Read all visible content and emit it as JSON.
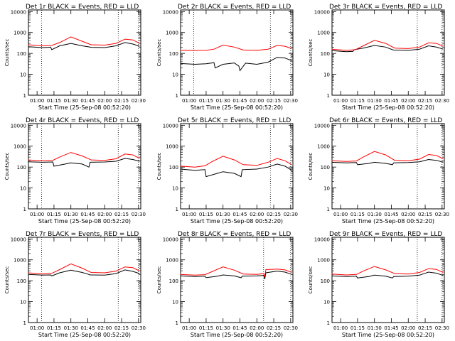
{
  "chart_data": [
    {
      "type": "line",
      "title": "Det 1r BLACK = Events, RED = LLD",
      "xlabel": "Start Time (25-Sep-08 00:52:20)",
      "ylabel": "Counts/sec",
      "x_ticks": [
        "01:00",
        "01:15",
        "01:30",
        "01:45",
        "02:00",
        "02:15",
        "02:30"
      ],
      "y_ticks": [
        "1",
        "10",
        "100",
        "1000",
        "10000"
      ],
      "yscale": "log",
      "ylim": [
        1,
        12000
      ],
      "xlim": [
        "00:52:20",
        "02:32:00"
      ],
      "markers": [
        "01:04",
        "02:12",
        "02:30"
      ],
      "series": [
        {
          "name": "Events",
          "color": "#000000",
          "x": [
            "00:52",
            "01:05",
            "01:10",
            "01:12",
            "01:13",
            "01:20",
            "01:30",
            "01:40",
            "01:47",
            "01:48",
            "02:00",
            "02:10",
            "02:18",
            "02:25",
            "02:31"
          ],
          "y": [
            210,
            190,
            195,
            200,
            150,
            230,
            300,
            230,
            200,
            195,
            190,
            230,
            330,
            280,
            220
          ]
        },
        {
          "name": "LLD",
          "color": "#ff0000",
          "x": [
            "00:52",
            "01:05",
            "01:13",
            "01:20",
            "01:30",
            "01:40",
            "01:48",
            "02:00",
            "02:10",
            "02:18",
            "02:25",
            "02:31"
          ],
          "y": [
            260,
            230,
            240,
            330,
            620,
            380,
            260,
            250,
            300,
            480,
            440,
            300
          ]
        }
      ]
    },
    {
      "type": "line",
      "title": "Det 2r BLACK = Events, RED = LLD",
      "xlabel": "Start Time (25-Sep-08 00:52:20)",
      "ylabel": "Counts/sec",
      "x_ticks": [
        "01:00",
        "01:15",
        "01:30",
        "01:45",
        "02:00",
        "02:15",
        "02:30"
      ],
      "y_ticks": [
        "1",
        "10",
        "100",
        "1000",
        "10000"
      ],
      "yscale": "log",
      "ylim": [
        1,
        12000
      ],
      "xlim": [
        "00:52:20",
        "02:32:00"
      ],
      "markers": [
        "01:04",
        "02:12",
        "02:30"
      ],
      "series": [
        {
          "name": "Events",
          "color": "#000000",
          "x": [
            "00:52",
            "01:05",
            "01:15",
            "01:22",
            "01:23",
            "01:30",
            "01:40",
            "01:44",
            "01:45",
            "01:50",
            "02:00",
            "02:10",
            "02:18",
            "02:25",
            "02:31"
          ],
          "y": [
            33,
            30,
            32,
            36,
            20,
            30,
            35,
            25,
            15,
            34,
            30,
            38,
            65,
            60,
            45
          ]
        },
        {
          "name": "LLD",
          "color": "#ff0000",
          "x": [
            "00:52",
            "01:05",
            "01:15",
            "01:22",
            "01:30",
            "01:40",
            "01:48",
            "02:00",
            "02:10",
            "02:18",
            "02:25",
            "02:31"
          ],
          "y": [
            140,
            138,
            140,
            160,
            250,
            200,
            145,
            140,
            160,
            240,
            220,
            170
          ]
        }
      ]
    },
    {
      "type": "line",
      "title": "Det 3r BLACK = Events, RED = LLD",
      "xlabel": "Start Time (25-Sep-08 00:52:20)",
      "ylabel": "Counts/sec",
      "x_ticks": [
        "01:00",
        "01:15",
        "01:30",
        "01:45",
        "02:00",
        "02:15",
        "02:30"
      ],
      "y_ticks": [
        "1",
        "10",
        "100",
        "1000",
        "10000"
      ],
      "yscale": "log",
      "ylim": [
        1,
        12000
      ],
      "xlim": [
        "00:52:20",
        "02:32:00"
      ],
      "markers": [
        "02:08",
        "02:30"
      ],
      "series": [
        {
          "name": "Events",
          "color": "#000000",
          "x": [
            "00:52",
            "01:05",
            "01:11",
            "01:12",
            "01:20",
            "01:30",
            "01:40",
            "01:46",
            "01:47",
            "02:00",
            "02:10",
            "02:18",
            "02:25",
            "02:31"
          ],
          "y": [
            135,
            120,
            125,
            150,
            180,
            240,
            200,
            150,
            145,
            140,
            160,
            230,
            200,
            160
          ]
        },
        {
          "name": "LLD",
          "color": "#ff0000",
          "x": [
            "00:52",
            "01:05",
            "01:13",
            "01:20",
            "01:30",
            "01:40",
            "01:48",
            "02:00",
            "02:10",
            "02:18",
            "02:25",
            "02:31"
          ],
          "y": [
            160,
            140,
            150,
            230,
            420,
            300,
            180,
            170,
            200,
            320,
            300,
            220
          ]
        }
      ]
    },
    {
      "type": "line",
      "title": "Det 4r BLACK = Events, RED = LLD",
      "xlabel": "Start Time (25-Sep-08 00:52:20)",
      "ylabel": "Counts/sec",
      "x_ticks": [
        "01:00",
        "01:15",
        "01:30",
        "01:45",
        "02:00",
        "02:15",
        "02:30"
      ],
      "y_ticks": [
        "1",
        "10",
        "100",
        "1000",
        "10000"
      ],
      "yscale": "log",
      "ylim": [
        1,
        12000
      ],
      "xlim": [
        "00:52:20",
        "02:32:00"
      ],
      "markers": [
        "01:04",
        "02:12",
        "02:30"
      ],
      "series": [
        {
          "name": "Events",
          "color": "#000000",
          "x": [
            "00:52",
            "01:05",
            "01:14",
            "01:15",
            "01:25",
            "01:30",
            "01:40",
            "01:46",
            "01:47",
            "02:00",
            "02:10",
            "02:18",
            "02:25",
            "02:31"
          ],
          "y": [
            180,
            170,
            175,
            110,
            140,
            160,
            140,
            100,
            170,
            175,
            190,
            260,
            230,
            190
          ]
        },
        {
          "name": "LLD",
          "color": "#ff0000",
          "x": [
            "00:52",
            "01:05",
            "01:14",
            "01:20",
            "01:30",
            "01:40",
            "01:48",
            "02:00",
            "02:10",
            "02:18",
            "02:25",
            "02:31"
          ],
          "y": [
            220,
            200,
            210,
            300,
            500,
            340,
            220,
            210,
            250,
            420,
            380,
            260
          ]
        }
      ]
    },
    {
      "type": "line",
      "title": "Det 5r BLACK = Events, RED = LLD",
      "xlabel": "Start Time (25-Sep-08 00:52:20)",
      "ylabel": "Counts/sec",
      "x_ticks": [
        "01:00",
        "01:15",
        "01:30",
        "01:45",
        "02:00",
        "02:15",
        "02:30"
      ],
      "y_ticks": [
        "1",
        "10",
        "100",
        "1000",
        "10000"
      ],
      "yscale": "log",
      "ylim": [
        1,
        12000
      ],
      "xlim": [
        "00:52:20",
        "02:32:00"
      ],
      "markers": [
        "02:12",
        "02:30"
      ],
      "series": [
        {
          "name": "Events",
          "color": "#000000",
          "x": [
            "00:52",
            "01:05",
            "01:14",
            "01:15",
            "01:25",
            "01:30",
            "01:40",
            "01:46",
            "01:47",
            "02:00",
            "02:10",
            "02:18",
            "02:25",
            "02:31"
          ],
          "y": [
            80,
            70,
            75,
            35,
            50,
            60,
            50,
            35,
            75,
            80,
            100,
            140,
            110,
            70
          ]
        },
        {
          "name": "LLD",
          "color": "#ff0000",
          "x": [
            "00:52",
            "01:05",
            "01:14",
            "01:20",
            "01:30",
            "01:40",
            "01:48",
            "02:00",
            "02:10",
            "02:18",
            "02:25",
            "02:31"
          ],
          "y": [
            110,
            100,
            115,
            180,
            330,
            220,
            130,
            120,
            170,
            260,
            200,
            130
          ]
        }
      ]
    },
    {
      "type": "line",
      "title": "Det 6r BLACK = Events, RED = LLD",
      "xlabel": "Start Time (25-Sep-08 00:52:20)",
      "ylabel": "Counts/sec",
      "x_ticks": [
        "01:00",
        "01:15",
        "01:30",
        "01:45",
        "02:00",
        "02:15",
        "02:30"
      ],
      "y_ticks": [
        "1",
        "10",
        "100",
        "1000",
        "10000"
      ],
      "yscale": "log",
      "ylim": [
        1,
        12000
      ],
      "xlim": [
        "00:52:20",
        "02:32:00"
      ],
      "markers": [
        "02:08",
        "02:30"
      ],
      "series": [
        {
          "name": "Events",
          "color": "#000000",
          "x": [
            "00:52",
            "01:05",
            "01:14",
            "01:15",
            "01:25",
            "01:30",
            "01:40",
            "01:46",
            "01:47",
            "02:00",
            "02:10",
            "02:18",
            "02:25",
            "02:31"
          ],
          "y": [
            170,
            160,
            165,
            130,
            150,
            170,
            150,
            130,
            160,
            165,
            180,
            230,
            210,
            170
          ]
        },
        {
          "name": "LLD",
          "color": "#ff0000",
          "x": [
            "00:52",
            "01:05",
            "01:14",
            "01:20",
            "01:30",
            "01:40",
            "01:48",
            "02:00",
            "02:10",
            "02:18",
            "02:25",
            "02:31"
          ],
          "y": [
            200,
            185,
            195,
            300,
            560,
            380,
            210,
            200,
            240,
            400,
            360,
            250
          ]
        }
      ]
    },
    {
      "type": "line",
      "title": "Det 7r BLACK = Events, RED = LLD",
      "xlabel": "Start Time (25-Sep-08 00:52:20)",
      "ylabel": "Counts/sec",
      "x_ticks": [
        "01:00",
        "01:15",
        "01:30",
        "01:45",
        "02:00",
        "02:15",
        "02:30"
      ],
      "y_ticks": [
        "1",
        "10",
        "100",
        "1000",
        "10000"
      ],
      "yscale": "log",
      "ylim": [
        1,
        12000
      ],
      "xlim": [
        "00:52:20",
        "02:32:00"
      ],
      "markers": [
        "01:04",
        "02:12",
        "02:30"
      ],
      "series": [
        {
          "name": "Events",
          "color": "#000000",
          "x": [
            "00:52",
            "01:05",
            "01:12",
            "01:13",
            "01:20",
            "01:30",
            "01:40",
            "01:46",
            "01:47",
            "02:00",
            "02:10",
            "02:18",
            "02:25",
            "02:31"
          ],
          "y": [
            200,
            185,
            190,
            170,
            240,
            320,
            250,
            200,
            190,
            185,
            220,
            330,
            280,
            220
          ]
        },
        {
          "name": "LLD",
          "color": "#ff0000",
          "x": [
            "00:52",
            "01:05",
            "01:13",
            "01:20",
            "01:30",
            "01:40",
            "01:48",
            "02:00",
            "02:10",
            "02:18",
            "02:25",
            "02:31"
          ],
          "y": [
            240,
            210,
            225,
            340,
            640,
            400,
            250,
            240,
            290,
            460,
            420,
            290
          ]
        }
      ]
    },
    {
      "type": "line",
      "title": "Det 8r BLACK = Events, RED = LLD",
      "xlabel": "Start Time (25-Sep-08 00:52:20)",
      "ylabel": "Counts/sec",
      "x_ticks": [
        "01:00",
        "01:15",
        "01:30",
        "01:45",
        "02:00",
        "02:15",
        "02:30"
      ],
      "y_ticks": [
        "1",
        "10",
        "100",
        "1000",
        "10000"
      ],
      "yscale": "log",
      "ylim": [
        1,
        12000
      ],
      "xlim": [
        "00:52:20",
        "02:32:00"
      ],
      "markers": [
        "02:06",
        "02:30"
      ],
      "series": [
        {
          "name": "Events",
          "color": "#000000",
          "x": [
            "00:52",
            "01:05",
            "01:14",
            "01:15",
            "01:25",
            "01:30",
            "01:40",
            "01:46",
            "01:47",
            "02:00",
            "02:06",
            "02:07",
            "02:08",
            "02:18",
            "02:25",
            "02:31"
          ],
          "y": [
            170,
            160,
            165,
            140,
            165,
            190,
            170,
            140,
            165,
            170,
            180,
            120,
            240,
            290,
            260,
            200
          ]
        },
        {
          "name": "LLD",
          "color": "#ff0000",
          "x": [
            "00:52",
            "01:05",
            "01:14",
            "01:20",
            "01:30",
            "01:40",
            "01:48",
            "02:00",
            "02:06",
            "02:07",
            "02:08",
            "02:18",
            "02:25",
            "02:31"
          ],
          "y": [
            200,
            185,
            195,
            270,
            460,
            320,
            210,
            200,
            220,
            150,
            340,
            360,
            330,
            250
          ]
        }
      ]
    },
    {
      "type": "line",
      "title": "Det 9r BLACK = Events, RED = LLD",
      "xlabel": "Start Time (25-Sep-08 00:52:20)",
      "ylabel": "Counts/sec",
      "x_ticks": [
        "01:00",
        "01:15",
        "01:30",
        "01:45",
        "02:00",
        "02:15",
        "02:30"
      ],
      "y_ticks": [
        "1",
        "10",
        "100",
        "1000",
        "10000"
      ],
      "yscale": "log",
      "ylim": [
        1,
        12000
      ],
      "xlim": [
        "00:52:20",
        "02:32:00"
      ],
      "markers": [
        "02:08",
        "02:30"
      ],
      "series": [
        {
          "name": "Events",
          "color": "#000000",
          "x": [
            "00:52",
            "01:05",
            "01:14",
            "01:15",
            "01:25",
            "01:30",
            "01:40",
            "01:46",
            "01:47",
            "02:00",
            "02:10",
            "02:18",
            "02:25",
            "02:31"
          ],
          "y": [
            170,
            160,
            165,
            135,
            160,
            185,
            165,
            135,
            160,
            165,
            185,
            260,
            230,
            180
          ]
        },
        {
          "name": "LLD",
          "color": "#ff0000",
          "x": [
            "00:52",
            "01:05",
            "01:14",
            "01:20",
            "01:30",
            "01:40",
            "01:48",
            "02:00",
            "02:10",
            "02:18",
            "02:25",
            "02:31"
          ],
          "y": [
            210,
            190,
            200,
            290,
            480,
            330,
            220,
            210,
            250,
            380,
            350,
            250
          ]
        }
      ]
    }
  ]
}
